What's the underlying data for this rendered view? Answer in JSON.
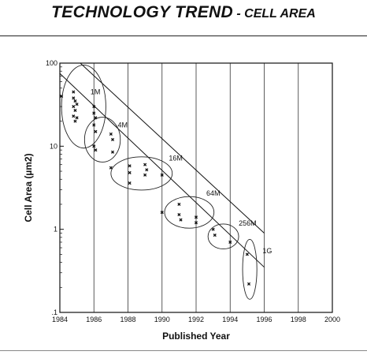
{
  "title": {
    "main": "TECHNOLOGY TREND",
    "separator": " - ",
    "sub": "CELL AREA"
  },
  "chart_data": {
    "type": "scatter",
    "title": "TECHNOLOGY TREND - CELL AREA",
    "xlabel": "Published Year",
    "ylabel": "Cell Area (µm2)",
    "xlim": [
      1984,
      2000
    ],
    "ylim": [
      0.1,
      100
    ],
    "yscale": "log",
    "x_ticks": [
      "1984",
      "1986",
      "1988",
      "1990",
      "1992",
      "1994",
      "1996",
      "1998",
      "2000"
    ],
    "y_ticks": [
      ".1",
      "1",
      "10",
      "100"
    ],
    "grid": "vertical",
    "points": [
      [
        1984.1,
        40
      ],
      [
        1984.8,
        45
      ],
      [
        1984.8,
        38
      ],
      [
        1984.9,
        35
      ],
      [
        1984.8,
        30
      ],
      [
        1984.9,
        27
      ],
      [
        1984.8,
        23
      ],
      [
        1985.0,
        22
      ],
      [
        1984.9,
        20
      ],
      [
        1985.0,
        32
      ],
      [
        1986.0,
        30
      ],
      [
        1986.0,
        25
      ],
      [
        1986.1,
        22
      ],
      [
        1986.0,
        18
      ],
      [
        1986.1,
        15
      ],
      [
        1986.0,
        10
      ],
      [
        1986.1,
        9
      ],
      [
        1987.0,
        14
      ],
      [
        1987.1,
        12
      ],
      [
        1987.1,
        8.5
      ],
      [
        1987.0,
        5.5
      ],
      [
        1988.1,
        5.8
      ],
      [
        1988.1,
        4.8
      ],
      [
        1988.1,
        3.6
      ],
      [
        1989.0,
        6.0
      ],
      [
        1989.1,
        5.2
      ],
      [
        1989.0,
        4.5
      ],
      [
        1990.0,
        4.5
      ],
      [
        1990.0,
        1.6
      ],
      [
        1991.0,
        2.0
      ],
      [
        1991.0,
        1.5
      ],
      [
        1991.1,
        1.3
      ],
      [
        1992.0,
        1.4
      ],
      [
        1992.0,
        1.2
      ],
      [
        1993.0,
        1.0
      ],
      [
        1993.1,
        0.85
      ],
      [
        1994.0,
        0.7
      ],
      [
        1995.0,
        0.5
      ],
      [
        1995.1,
        0.22
      ]
    ],
    "generation_labels": [
      {
        "label": "1M",
        "x": 1985.8,
        "y": 45
      },
      {
        "label": "4M",
        "x": 1987.4,
        "y": 18
      },
      {
        "label": "16M",
        "x": 1990.4,
        "y": 7.2
      },
      {
        "label": "64M",
        "x": 1992.6,
        "y": 2.7
      },
      {
        "label": "256M",
        "x": 1994.5,
        "y": 1.18
      },
      {
        "label": "1G",
        "x": 1995.9,
        "y": 0.55
      }
    ],
    "generation_groups": [
      {
        "label": "1M",
        "cx": 1985.4,
        "cy": 30,
        "rx_years": 1.3,
        "decades": 0.5
      },
      {
        "label": "4M",
        "cx": 1986.5,
        "cy": 12,
        "rx_years": 1.05,
        "decades": 0.27
      },
      {
        "label": "16M",
        "cx": 1988.8,
        "cy": 4.7,
        "rx_years": 1.8,
        "decades": 0.2
      },
      {
        "label": "64M",
        "cx": 1991.6,
        "cy": 1.6,
        "rx_years": 1.45,
        "decades": 0.19
      },
      {
        "label": "256M",
        "cx": 1993.6,
        "cy": 0.82,
        "rx_years": 0.9,
        "decades": 0.15
      },
      {
        "label": "1G",
        "cx": 1995.15,
        "cy": 0.33,
        "rx_years": 0.42,
        "decades": 0.36
      }
    ],
    "trend_lines": [
      {
        "from": [
          1984.0,
          75
        ],
        "to": [
          1996.0,
          0.35
        ]
      },
      {
        "from": [
          1985.2,
          100
        ],
        "to": [
          1996.0,
          0.9
        ]
      }
    ]
  }
}
